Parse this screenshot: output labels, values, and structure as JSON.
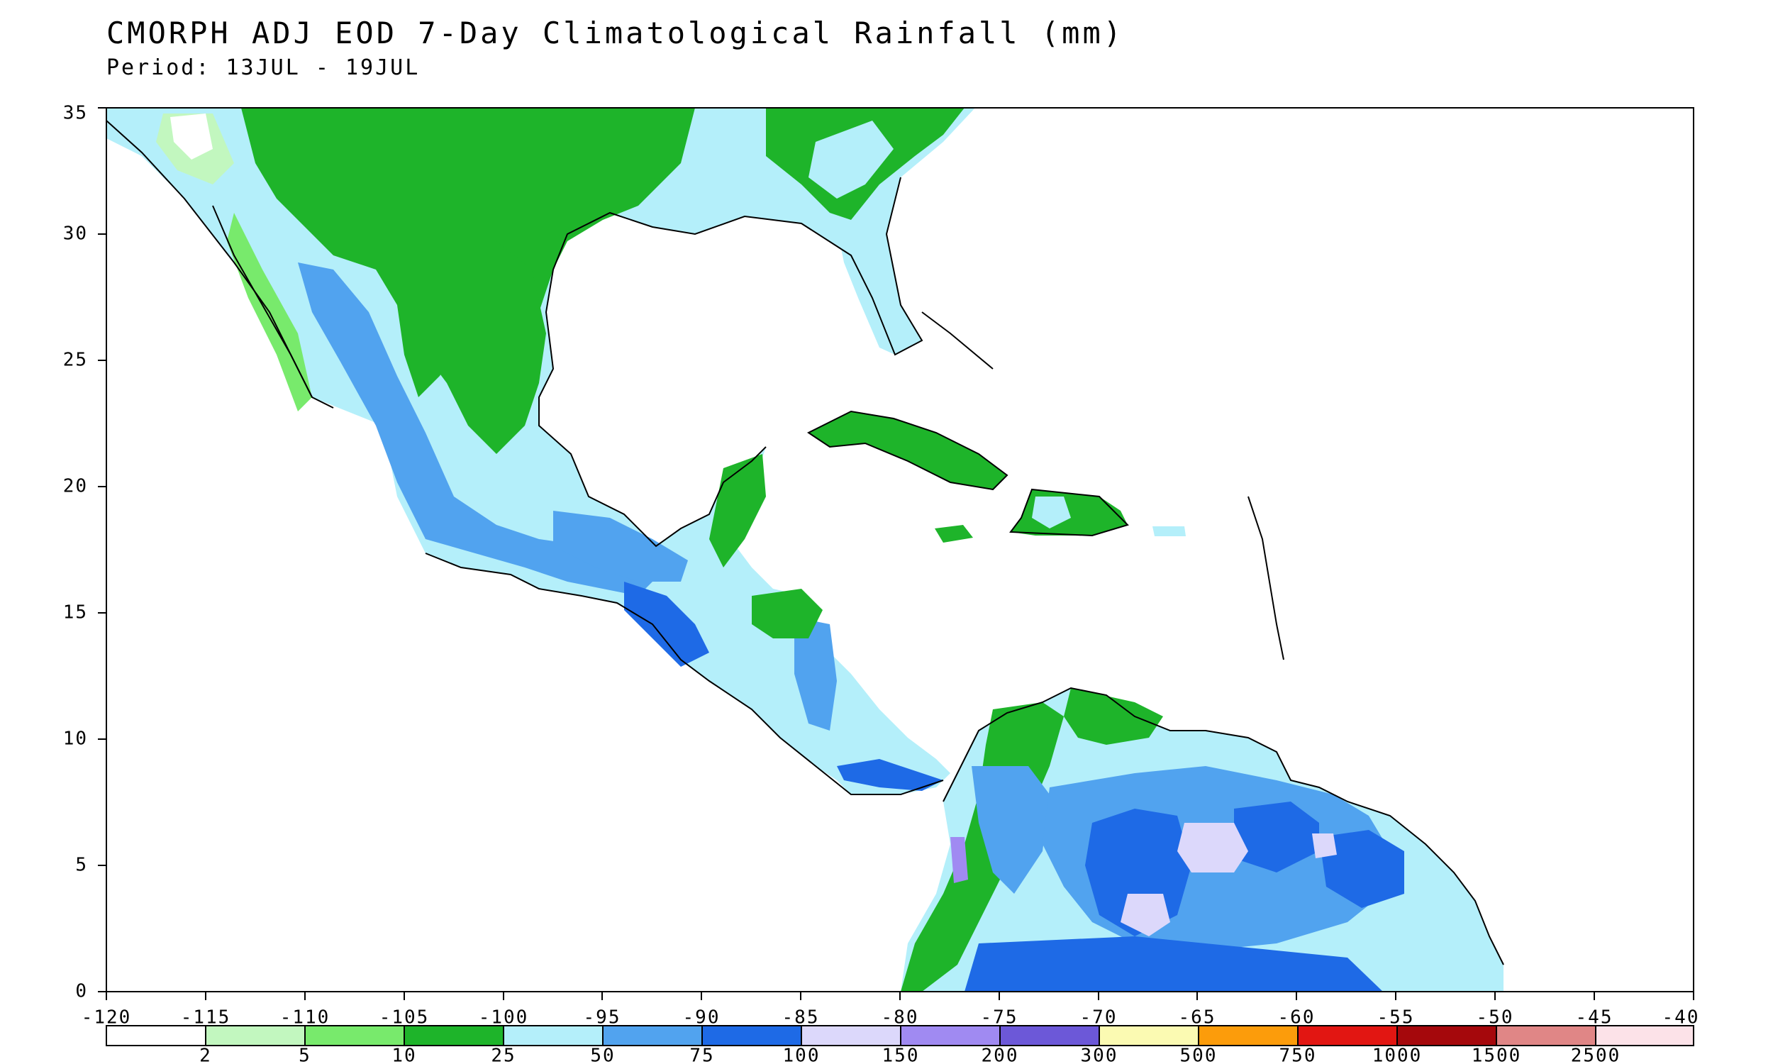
{
  "title": "CMORPH ADJ EOD 7-Day Climatological Rainfall (mm)",
  "subtitle": "Period: 13JUL - 19JUL",
  "axes": {
    "lon_ticks": [
      "-120",
      "-115",
      "-110",
      "-105",
      "-100",
      "-95",
      "-90",
      "-85",
      "-80",
      "-75",
      "-70",
      "-65",
      "-60",
      "-55",
      "-50",
      "-45",
      "-40"
    ],
    "lat_ticks": [
      "0",
      "5",
      "10",
      "15",
      "20",
      "25",
      "30",
      "35"
    ]
  },
  "legend": {
    "labels": [
      "2",
      "5",
      "10",
      "25",
      "50",
      "75",
      "100",
      "150",
      "200",
      "300",
      "500",
      "750",
      "1000",
      "1500",
      "2500"
    ],
    "colors": [
      "#ffffff",
      "#c2f7bf",
      "#78ea6c",
      "#1eb42a",
      "#b4effa",
      "#51a3ef",
      "#1e6ae6",
      "#dcd8fb",
      "#a08af2",
      "#6c58d8",
      "#fbfab2",
      "#fc9c0b",
      "#e21612",
      "#a5080c",
      "#e08686",
      "#fce2e8"
    ]
  }
}
